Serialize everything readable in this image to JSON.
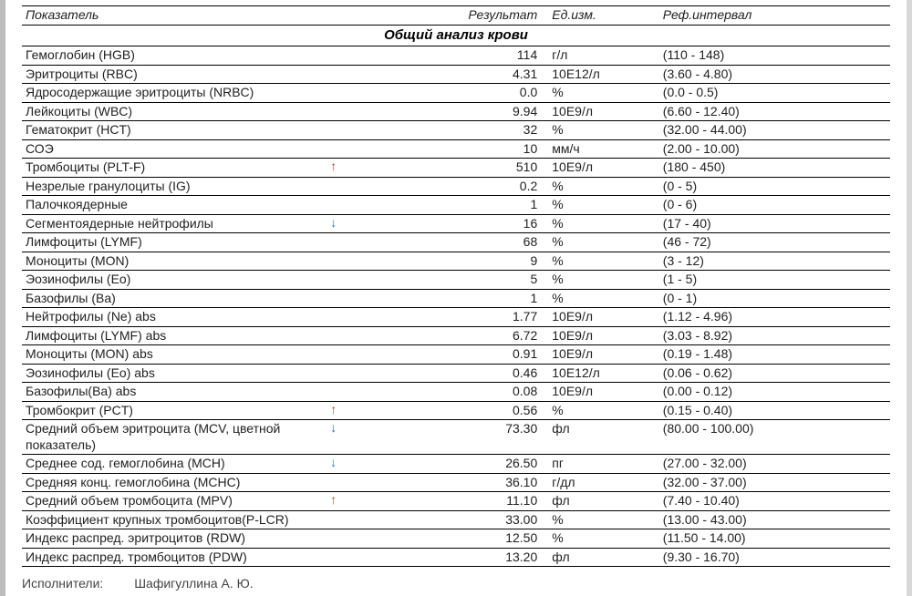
{
  "headers": {
    "name": "Показатель",
    "result": "Результат",
    "unit": "Ед.изм.",
    "ref": "Реф.интервал"
  },
  "section_title": "Общий анализ крови",
  "arrows": {
    "up": "↑",
    "down": "↓"
  },
  "colors": {
    "up": "#d33a2f",
    "down": "#2f6fd3",
    "border": "#000000",
    "bg": "#ffffff",
    "text": "#222222"
  },
  "rows": [
    {
      "name": "Гемоглобин (HGB)",
      "flag": "",
      "result": "114",
      "unit": "г/л",
      "ref": "(110 - 148)"
    },
    {
      "name": "Эритроциты (RBC)",
      "flag": "",
      "result": "4.31",
      "unit": "10Е12/л",
      "ref": "(3.60 - 4.80)"
    },
    {
      "name": "Ядросодержащие эритроциты (NRBC)",
      "flag": "",
      "result": "0.0",
      "unit": "%",
      "ref": "(0.0 - 0.5)"
    },
    {
      "name": "Лейкоциты (WBC)",
      "flag": "",
      "result": "9.94",
      "unit": "10Е9/л",
      "ref": "(6.60 - 12.40)"
    },
    {
      "name": "Гематокрит (HCT)",
      "flag": "",
      "result": "32",
      "unit": "%",
      "ref": "(32.00 - 44.00)"
    },
    {
      "name": "СОЭ",
      "flag": "",
      "result": "10",
      "unit": "мм/ч",
      "ref": "(2.00 - 10.00)"
    },
    {
      "name": "Тромбоциты (PLT-F)",
      "flag": "up",
      "result": "510",
      "unit": "10Е9/л",
      "ref": "(180 - 450)"
    },
    {
      "name": "Незрелые гранулоциты (IG)",
      "flag": "",
      "result": "0.2",
      "unit": "%",
      "ref": "(0 - 5)"
    },
    {
      "name": "Палочкоядерные",
      "flag": "",
      "result": "1",
      "unit": "%",
      "ref": "(0 - 6)"
    },
    {
      "name": "Сегментоядерные нейтрофилы",
      "flag": "down",
      "result": "16",
      "unit": "%",
      "ref": "(17 - 40)"
    },
    {
      "name": "Лимфоциты (LYMF)",
      "flag": "",
      "result": "68",
      "unit": "%",
      "ref": "(46 - 72)"
    },
    {
      "name": "Моноциты (MON)",
      "flag": "",
      "result": "9",
      "unit": "%",
      "ref": "(3 - 12)"
    },
    {
      "name": "Эозинофилы (Eo)",
      "flag": "",
      "result": "5",
      "unit": "%",
      "ref": "(1 - 5)"
    },
    {
      "name": "Базофилы (Ba)",
      "flag": "",
      "result": "1",
      "unit": "%",
      "ref": "(0 - 1)"
    },
    {
      "name": "Нейтрофилы (Ne) abs",
      "flag": "",
      "result": "1.77",
      "unit": "10Е9/л",
      "ref": "(1.12 - 4.96)"
    },
    {
      "name": "Лимфоциты (LYMF) abs",
      "flag": "",
      "result": "6.72",
      "unit": "10Е9/л",
      "ref": "(3.03 - 8.92)"
    },
    {
      "name": "Моноциты (MON) abs",
      "flag": "",
      "result": "0.91",
      "unit": "10Е9/л",
      "ref": "(0.19 - 1.48)"
    },
    {
      "name": "Эозинофилы (Eo) abs",
      "flag": "",
      "result": "0.46",
      "unit": "10Е12/л",
      "ref": "(0.06 - 0.62)"
    },
    {
      "name": "Базофилы(Ba) abs",
      "flag": "",
      "result": "0.08",
      "unit": "10Е9/л",
      "ref": "(0.00 - 0.12)"
    },
    {
      "name": "Тромбокрит (PCT)",
      "flag": "up",
      "result": "0.56",
      "unit": "%",
      "ref": "(0.15 - 0.40)"
    },
    {
      "name": "Средний объем эритроцита (MCV, цветной показатель)",
      "flag": "down",
      "result": "73.30",
      "unit": "фл",
      "ref": "(80.00 - 100.00)"
    },
    {
      "name": "Среднее сод. гемоглобина (MCH)",
      "flag": "down",
      "result": "26.50",
      "unit": "пг",
      "ref": "(27.00 - 32.00)"
    },
    {
      "name": "Средняя конц. гемоглобина (MCHC)",
      "flag": "",
      "result": "36.10",
      "unit": "г/дл",
      "ref": "(32.00 - 37.00)"
    },
    {
      "name": "Средний объем тромбоцита (MPV)",
      "flag": "up",
      "result": "11.10",
      "unit": "фл",
      "ref": "(7.40 - 10.40)"
    },
    {
      "name": "Коэффициент крупных тромбоцитов(P-LCR)",
      "flag": "",
      "result": "33.00",
      "unit": "%",
      "ref": "(13.00 - 43.00)"
    },
    {
      "name": "Индекс распред. эритроцитов (RDW)",
      "flag": "",
      "result": "12.50",
      "unit": "%",
      "ref": "(11.50 - 14.00)"
    },
    {
      "name": "Индекс распред. тромбоцитов (PDW)",
      "flag": "",
      "result": "13.20",
      "unit": "фл",
      "ref": "(9.30 - 16.70)"
    }
  ],
  "footer": {
    "label": "Исполнители:",
    "value": "Шафигуллина А. Ю."
  }
}
